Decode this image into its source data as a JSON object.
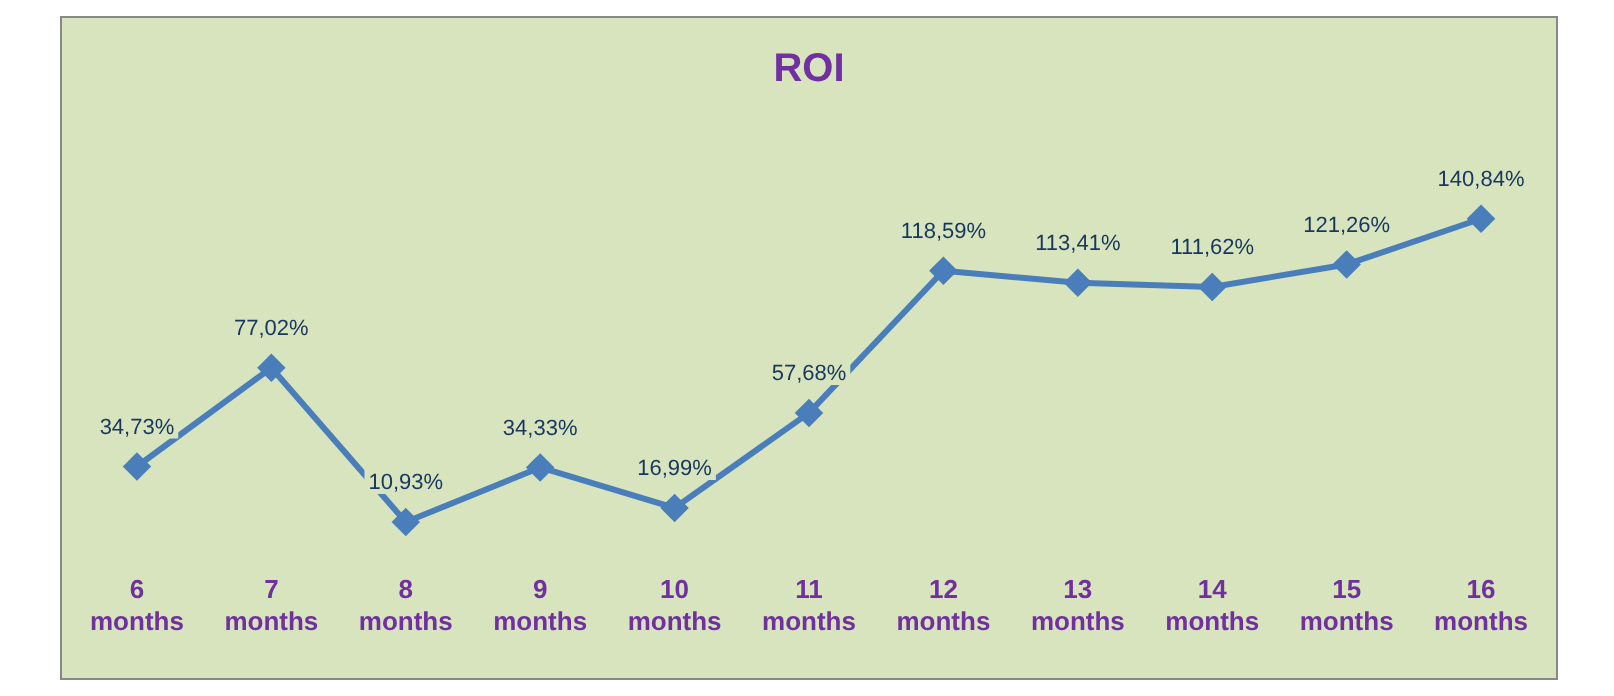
{
  "chart_data": {
    "type": "line",
    "title": "ROI",
    "categories": [
      "6 months",
      "7 months",
      "8 months",
      "9 months",
      "10 months",
      "11 months",
      "12 months",
      "13 months",
      "14 months",
      "15 months",
      "16 months"
    ],
    "series": [
      {
        "color": "#4a7ebb",
        "values": [
          34.73,
          77.02,
          10.93,
          34.33,
          16.99,
          57.68,
          118.59,
          113.41,
          111.62,
          121.26,
          140.84
        ],
        "value_labels": [
          "34,73%",
          "77,02%",
          "10,93%",
          "34,33%",
          "16,99%",
          "57,68%",
          "118,59%",
          "113,41%",
          "111,62%",
          "121,26%",
          "140,84%"
        ]
      }
    ],
    "marker": "diamond",
    "line_style": "solid",
    "grid": false,
    "legend": false,
    "tick_labels": "x"
  }
}
